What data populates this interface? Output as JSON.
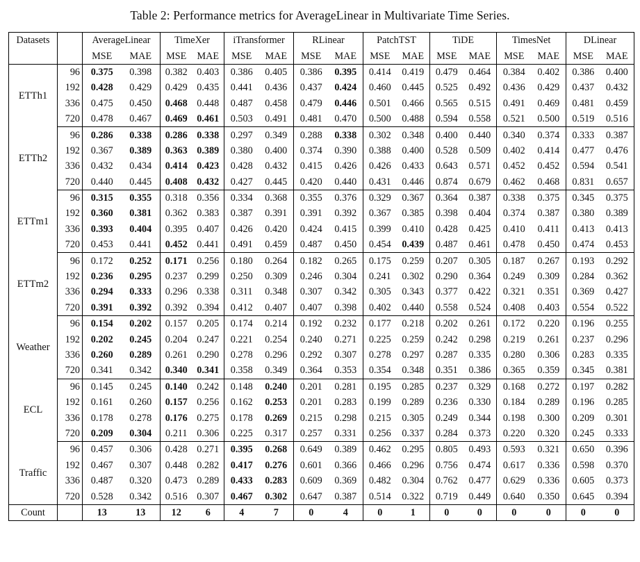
{
  "caption": "Table 2: Performance metrics for AverageLinear in Multivariate Time Series.",
  "header": {
    "datasets_label": "Datasets",
    "models": [
      "AverageLinear",
      "TimeXer",
      "iTransformer",
      "RLinear",
      "PatchTST",
      "TiDE",
      "TimesNet",
      "DLinear"
    ],
    "metrics": [
      "MSE",
      "MAE"
    ]
  },
  "groups": [
    {
      "name": "ETTh1",
      "rows": [
        {
          "h": "96",
          "v": [
            "0.375",
            "0.398",
            "0.382",
            "0.403",
            "0.386",
            "0.405",
            "0.386",
            "0.395",
            "0.414",
            "0.419",
            "0.479",
            "0.464",
            "0.384",
            "0.402",
            "0.386",
            "0.400"
          ],
          "bold": [
            0,
            7
          ]
        },
        {
          "h": "192",
          "v": [
            "0.428",
            "0.429",
            "0.429",
            "0.435",
            "0.441",
            "0.436",
            "0.437",
            "0.424",
            "0.460",
            "0.445",
            "0.525",
            "0.492",
            "0.436",
            "0.429",
            "0.437",
            "0.432"
          ],
          "bold": [
            0,
            7
          ]
        },
        {
          "h": "336",
          "v": [
            "0.475",
            "0.450",
            "0.468",
            "0.448",
            "0.487",
            "0.458",
            "0.479",
            "0.446",
            "0.501",
            "0.466",
            "0.565",
            "0.515",
            "0.491",
            "0.469",
            "0.481",
            "0.459"
          ],
          "bold": [
            2,
            7
          ]
        },
        {
          "h": "720",
          "v": [
            "0.478",
            "0.467",
            "0.469",
            "0.461",
            "0.503",
            "0.491",
            "0.481",
            "0.470",
            "0.500",
            "0.488",
            "0.594",
            "0.558",
            "0.521",
            "0.500",
            "0.519",
            "0.516"
          ],
          "bold": [
            2,
            3
          ]
        }
      ]
    },
    {
      "name": "ETTh2",
      "rows": [
        {
          "h": "96",
          "v": [
            "0.286",
            "0.338",
            "0.286",
            "0.338",
            "0.297",
            "0.349",
            "0.288",
            "0.338",
            "0.302",
            "0.348",
            "0.400",
            "0.440",
            "0.340",
            "0.374",
            "0.333",
            "0.387"
          ],
          "bold": [
            0,
            1,
            2,
            3,
            7
          ]
        },
        {
          "h": "192",
          "v": [
            "0.367",
            "0.389",
            "0.363",
            "0.389",
            "0.380",
            "0.400",
            "0.374",
            "0.390",
            "0.388",
            "0.400",
            "0.528",
            "0.509",
            "0.402",
            "0.414",
            "0.477",
            "0.476"
          ],
          "bold": [
            1,
            2,
            3
          ]
        },
        {
          "h": "336",
          "v": [
            "0.432",
            "0.434",
            "0.414",
            "0.423",
            "0.428",
            "0.432",
            "0.415",
            "0.426",
            "0.426",
            "0.433",
            "0.643",
            "0.571",
            "0.452",
            "0.452",
            "0.594",
            "0.541"
          ],
          "bold": [
            2,
            3
          ]
        },
        {
          "h": "720",
          "v": [
            "0.440",
            "0.445",
            "0.408",
            "0.432",
            "0.427",
            "0.445",
            "0.420",
            "0.440",
            "0.431",
            "0.446",
            "0.874",
            "0.679",
            "0.462",
            "0.468",
            "0.831",
            "0.657"
          ],
          "bold": [
            2,
            3
          ]
        }
      ]
    },
    {
      "name": "ETTm1",
      "rows": [
        {
          "h": "96",
          "v": [
            "0.315",
            "0.355",
            "0.318",
            "0.356",
            "0.334",
            "0.368",
            "0.355",
            "0.376",
            "0.329",
            "0.367",
            "0.364",
            "0.387",
            "0.338",
            "0.375",
            "0.345",
            "0.375"
          ],
          "bold": [
            0,
            1
          ]
        },
        {
          "h": "192",
          "v": [
            "0.360",
            "0.381",
            "0.362",
            "0.383",
            "0.387",
            "0.391",
            "0.391",
            "0.392",
            "0.367",
            "0.385",
            "0.398",
            "0.404",
            "0.374",
            "0.387",
            "0.380",
            "0.389"
          ],
          "bold": [
            0,
            1
          ]
        },
        {
          "h": "336",
          "v": [
            "0.393",
            "0.404",
            "0.395",
            "0.407",
            "0.426",
            "0.420",
            "0.424",
            "0.415",
            "0.399",
            "0.410",
            "0.428",
            "0.425",
            "0.410",
            "0.411",
            "0.413",
            "0.413"
          ],
          "bold": [
            0,
            1
          ]
        },
        {
          "h": "720",
          "v": [
            "0.453",
            "0.441",
            "0.452",
            "0.441",
            "0.491",
            "0.459",
            "0.487",
            "0.450",
            "0.454",
            "0.439",
            "0.487",
            "0.461",
            "0.478",
            "0.450",
            "0.474",
            "0.453"
          ],
          "bold": [
            2,
            9
          ]
        }
      ]
    },
    {
      "name": "ETTm2",
      "rows": [
        {
          "h": "96",
          "v": [
            "0.172",
            "0.252",
            "0.171",
            "0.256",
            "0.180",
            "0.264",
            "0.182",
            "0.265",
            "0.175",
            "0.259",
            "0.207",
            "0.305",
            "0.187",
            "0.267",
            "0.193",
            "0.292"
          ],
          "bold": [
            1,
            2
          ]
        },
        {
          "h": "192",
          "v": [
            "0.236",
            "0.295",
            "0.237",
            "0.299",
            "0.250",
            "0.309",
            "0.246",
            "0.304",
            "0.241",
            "0.302",
            "0.290",
            "0.364",
            "0.249",
            "0.309",
            "0.284",
            "0.362"
          ],
          "bold": [
            0,
            1
          ]
        },
        {
          "h": "336",
          "v": [
            "0.294",
            "0.333",
            "0.296",
            "0.338",
            "0.311",
            "0.348",
            "0.307",
            "0.342",
            "0.305",
            "0.343",
            "0.377",
            "0.422",
            "0.321",
            "0.351",
            "0.369",
            "0.427"
          ],
          "bold": [
            0,
            1
          ]
        },
        {
          "h": "720",
          "v": [
            "0.391",
            "0.392",
            "0.392",
            "0.394",
            "0.412",
            "0.407",
            "0.407",
            "0.398",
            "0.402",
            "0.440",
            "0.558",
            "0.524",
            "0.408",
            "0.403",
            "0.554",
            "0.522"
          ],
          "bold": [
            0,
            1
          ]
        }
      ]
    },
    {
      "name": "Weather",
      "rows": [
        {
          "h": "96",
          "v": [
            "0.154",
            "0.202",
            "0.157",
            "0.205",
            "0.174",
            "0.214",
            "0.192",
            "0.232",
            "0.177",
            "0.218",
            "0.202",
            "0.261",
            "0.172",
            "0.220",
            "0.196",
            "0.255"
          ],
          "bold": [
            0,
            1
          ]
        },
        {
          "h": "192",
          "v": [
            "0.202",
            "0.245",
            "0.204",
            "0.247",
            "0.221",
            "0.254",
            "0.240",
            "0.271",
            "0.225",
            "0.259",
            "0.242",
            "0.298",
            "0.219",
            "0.261",
            "0.237",
            "0.296"
          ],
          "bold": [
            0,
            1
          ]
        },
        {
          "h": "336",
          "v": [
            "0.260",
            "0.289",
            "0.261",
            "0.290",
            "0.278",
            "0.296",
            "0.292",
            "0.307",
            "0.278",
            "0.297",
            "0.287",
            "0.335",
            "0.280",
            "0.306",
            "0.283",
            "0.335"
          ],
          "bold": [
            0,
            1
          ]
        },
        {
          "h": "720",
          "v": [
            "0.341",
            "0.342",
            "0.340",
            "0.341",
            "0.358",
            "0.349",
            "0.364",
            "0.353",
            "0.354",
            "0.348",
            "0.351",
            "0.386",
            "0.365",
            "0.359",
            "0.345",
            "0.381"
          ],
          "bold": [
            2,
            3
          ]
        }
      ]
    },
    {
      "name": "ECL",
      "rows": [
        {
          "h": "96",
          "v": [
            "0.145",
            "0.245",
            "0.140",
            "0.242",
            "0.148",
            "0.240",
            "0.201",
            "0.281",
            "0.195",
            "0.285",
            "0.237",
            "0.329",
            "0.168",
            "0.272",
            "0.197",
            "0.282"
          ],
          "bold": [
            2,
            5
          ]
        },
        {
          "h": "192",
          "v": [
            "0.161",
            "0.260",
            "0.157",
            "0.256",
            "0.162",
            "0.253",
            "0.201",
            "0.283",
            "0.199",
            "0.289",
            "0.236",
            "0.330",
            "0.184",
            "0.289",
            "0.196",
            "0.285"
          ],
          "bold": [
            2,
            5
          ]
        },
        {
          "h": "336",
          "v": [
            "0.178",
            "0.278",
            "0.176",
            "0.275",
            "0.178",
            "0.269",
            "0.215",
            "0.298",
            "0.215",
            "0.305",
            "0.249",
            "0.344",
            "0.198",
            "0.300",
            "0.209",
            "0.301"
          ],
          "bold": [
            2,
            5
          ]
        },
        {
          "h": "720",
          "v": [
            "0.209",
            "0.304",
            "0.211",
            "0.306",
            "0.225",
            "0.317",
            "0.257",
            "0.331",
            "0.256",
            "0.337",
            "0.284",
            "0.373",
            "0.220",
            "0.320",
            "0.245",
            "0.333"
          ],
          "bold": [
            0,
            1
          ]
        }
      ]
    },
    {
      "name": "Traffic",
      "rows": [
        {
          "h": "96",
          "v": [
            "0.457",
            "0.306",
            "0.428",
            "0.271",
            "0.395",
            "0.268",
            "0.649",
            "0.389",
            "0.462",
            "0.295",
            "0.805",
            "0.493",
            "0.593",
            "0.321",
            "0.650",
            "0.396"
          ],
          "bold": [
            4,
            5
          ]
        },
        {
          "h": "192",
          "v": [
            "0.467",
            "0.307",
            "0.448",
            "0.282",
            "0.417",
            "0.276",
            "0.601",
            "0.366",
            "0.466",
            "0.296",
            "0.756",
            "0.474",
            "0.617",
            "0.336",
            "0.598",
            "0.370"
          ],
          "bold": [
            4,
            5
          ]
        },
        {
          "h": "336",
          "v": [
            "0.487",
            "0.320",
            "0.473",
            "0.289",
            "0.433",
            "0.283",
            "0.609",
            "0.369",
            "0.482",
            "0.304",
            "0.762",
            "0.477",
            "0.629",
            "0.336",
            "0.605",
            "0.373"
          ],
          "bold": [
            4,
            5
          ]
        },
        {
          "h": "720",
          "v": [
            "0.528",
            "0.342",
            "0.516",
            "0.307",
            "0.467",
            "0.302",
            "0.647",
            "0.387",
            "0.514",
            "0.322",
            "0.719",
            "0.449",
            "0.640",
            "0.350",
            "0.645",
            "0.394"
          ],
          "bold": [
            4,
            5
          ]
        }
      ]
    }
  ],
  "count": {
    "label": "Count",
    "values": [
      "13",
      "13",
      "12",
      "6",
      "4",
      "7",
      "0",
      "4",
      "0",
      "1",
      "0",
      "0",
      "0",
      "0",
      "0",
      "0"
    ]
  }
}
